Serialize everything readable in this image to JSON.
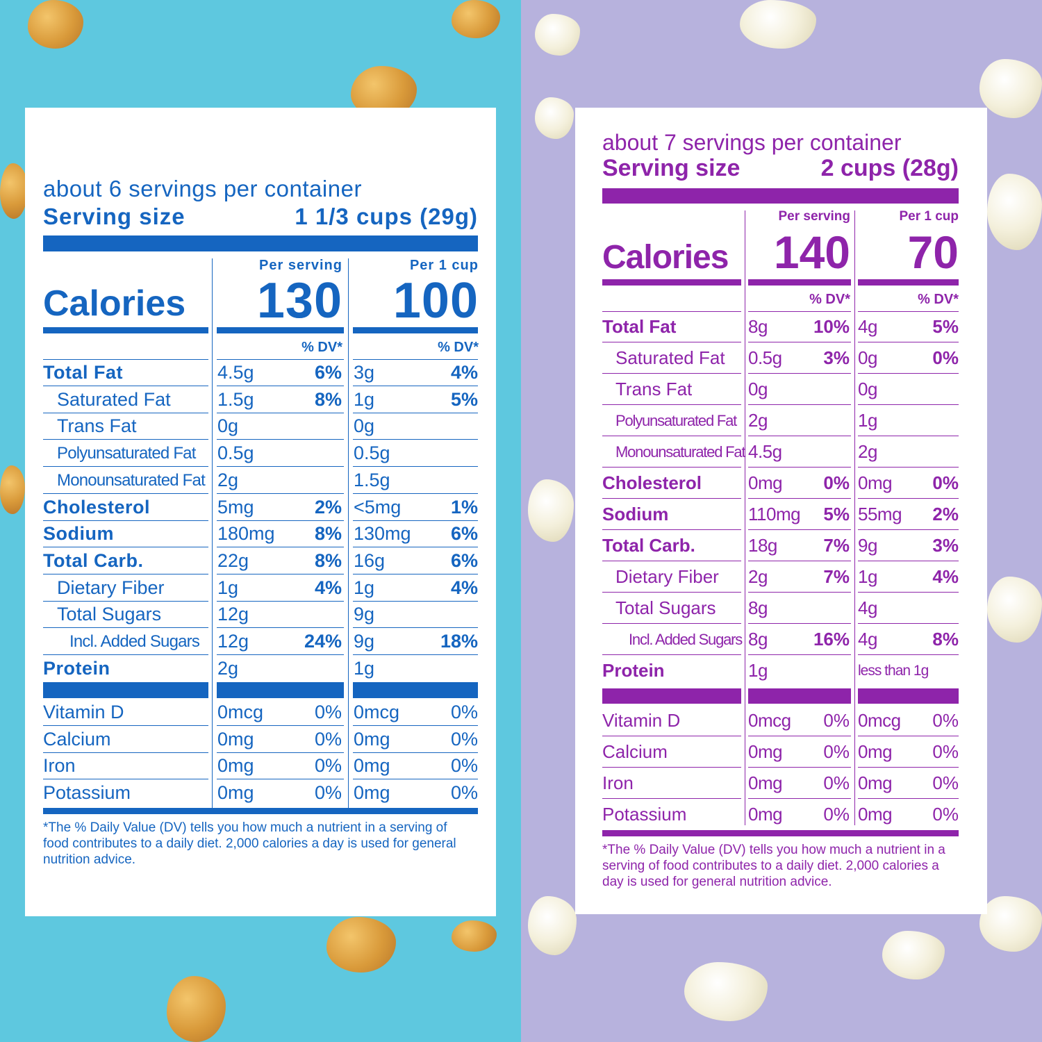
{
  "background": {
    "left_color": "#5ec8df",
    "right_color": "#b7b2dd",
    "left_decoration": "caramel-cheese-popcorn",
    "right_decoration": "white-popcorn"
  },
  "left_label": {
    "accent": "#1565c0",
    "servings_per_container": "about 6 servings per container",
    "serving_size_label": "Serving size",
    "serving_size_value": "1 1/3 cups (29g)",
    "col1_header": "Per serving",
    "col2_header": "Per 1 cup",
    "calories_label": "Calories",
    "calories_col1": "130",
    "calories_col2": "100",
    "dv_header": "% DV*",
    "nutrients": [
      {
        "name": "Total Fat",
        "a1": "4.5g",
        "p1": "6%",
        "a2": "3g",
        "p2": "4%"
      },
      {
        "name": "Saturated Fat",
        "a1": "1.5g",
        "p1": "8%",
        "a2": "1g",
        "p2": "5%"
      },
      {
        "name": "Trans Fat",
        "a1": "0g",
        "p1": "",
        "a2": "0g",
        "p2": ""
      },
      {
        "name": "Polyunsaturated Fat",
        "a1": "0.5g",
        "p1": "",
        "a2": "0.5g",
        "p2": ""
      },
      {
        "name": "Monounsaturated Fat",
        "a1": "2g",
        "p1": "",
        "a2": "1.5g",
        "p2": ""
      },
      {
        "name": "Cholesterol",
        "a1": "5mg",
        "p1": "2%",
        "a2": "<5mg",
        "p2": "1%"
      },
      {
        "name": "Sodium",
        "a1": "180mg",
        "p1": "8%",
        "a2": "130mg",
        "p2": "6%"
      },
      {
        "name": "Total Carb.",
        "a1": "22g",
        "p1": "8%",
        "a2": "16g",
        "p2": "6%"
      },
      {
        "name": "Dietary Fiber",
        "a1": "1g",
        "p1": "4%",
        "a2": "1g",
        "p2": "4%"
      },
      {
        "name": "Total Sugars",
        "a1": "12g",
        "p1": "",
        "a2": "9g",
        "p2": ""
      },
      {
        "name": "Incl. Added Sugars",
        "a1": "12g",
        "p1": "24%",
        "a2": "9g",
        "p2": "18%"
      },
      {
        "name": "Protein",
        "a1": "2g",
        "p1": "",
        "a2": "1g",
        "p2": ""
      }
    ],
    "vitamins": [
      {
        "name": "Vitamin D",
        "a1": "0mcg",
        "p1": "0%",
        "a2": "0mcg",
        "p2": "0%"
      },
      {
        "name": "Calcium",
        "a1": "0mg",
        "p1": "0%",
        "a2": "0mg",
        "p2": "0%"
      },
      {
        "name": "Iron",
        "a1": "0mg",
        "p1": "0%",
        "a2": "0mg",
        "p2": "0%"
      },
      {
        "name": "Potassium",
        "a1": "0mg",
        "p1": "0%",
        "a2": "0mg",
        "p2": "0%"
      }
    ],
    "footnote": "*The % Daily Value (DV) tells you how much a nutrient in a serving of food contributes to a daily diet. 2,000 calories a day is used for general nutrition advice."
  },
  "right_label": {
    "accent": "#8e24aa",
    "servings_per_container": "about 7 servings per container",
    "serving_size_label": "Serving size",
    "serving_size_value": "2 cups (28g)",
    "col1_header": "Per serving",
    "col2_header": "Per 1 cup",
    "calories_label": "Calories",
    "calories_col1": "140",
    "calories_col2": "70",
    "dv_header": "% DV*",
    "nutrients": [
      {
        "name": "Total Fat",
        "a1": "8g",
        "p1": "10%",
        "a2": "4g",
        "p2": "5%"
      },
      {
        "name": "Saturated Fat",
        "a1": "0.5g",
        "p1": "3%",
        "a2": "0g",
        "p2": "0%"
      },
      {
        "name": "Trans Fat",
        "a1": "0g",
        "p1": "",
        "a2": "0g",
        "p2": ""
      },
      {
        "name": "Polyunsaturated Fat",
        "a1": "2g",
        "p1": "",
        "a2": "1g",
        "p2": ""
      },
      {
        "name": "Monounsaturated Fat",
        "a1": "4.5g",
        "p1": "",
        "a2": "2g",
        "p2": ""
      },
      {
        "name": "Cholesterol",
        "a1": "0mg",
        "p1": "0%",
        "a2": "0mg",
        "p2": "0%"
      },
      {
        "name": "Sodium",
        "a1": "110mg",
        "p1": "5%",
        "a2": "55mg",
        "p2": "2%"
      },
      {
        "name": "Total Carb.",
        "a1": "18g",
        "p1": "7%",
        "a2": "9g",
        "p2": "3%"
      },
      {
        "name": "Dietary Fiber",
        "a1": "2g",
        "p1": "7%",
        "a2": "1g",
        "p2": "4%"
      },
      {
        "name": "Total Sugars",
        "a1": "8g",
        "p1": "",
        "a2": "4g",
        "p2": ""
      },
      {
        "name": "Incl. Added Sugars",
        "a1": "8g",
        "p1": "16%",
        "a2": "4g",
        "p2": "8%"
      },
      {
        "name": "Protein",
        "a1": "1g",
        "p1": "",
        "a2": "less than 1g",
        "p2": ""
      }
    ],
    "vitamins": [
      {
        "name": "Vitamin D",
        "a1": "0mcg",
        "p1": "0%",
        "a2": "0mcg",
        "p2": "0%"
      },
      {
        "name": "Calcium",
        "a1": "0mg",
        "p1": "0%",
        "a2": "0mg",
        "p2": "0%"
      },
      {
        "name": "Iron",
        "a1": "0mg",
        "p1": "0%",
        "a2": "0mg",
        "p2": "0%"
      },
      {
        "name": "Potassium",
        "a1": "0mg",
        "p1": "0%",
        "a2": "0mg",
        "p2": "0%"
      }
    ],
    "footnote": "*The % Daily Value (DV) tells you how much a nutrient in a serving of food contributes to a daily diet. 2,000 calories a day is used for general nutrition advice."
  }
}
